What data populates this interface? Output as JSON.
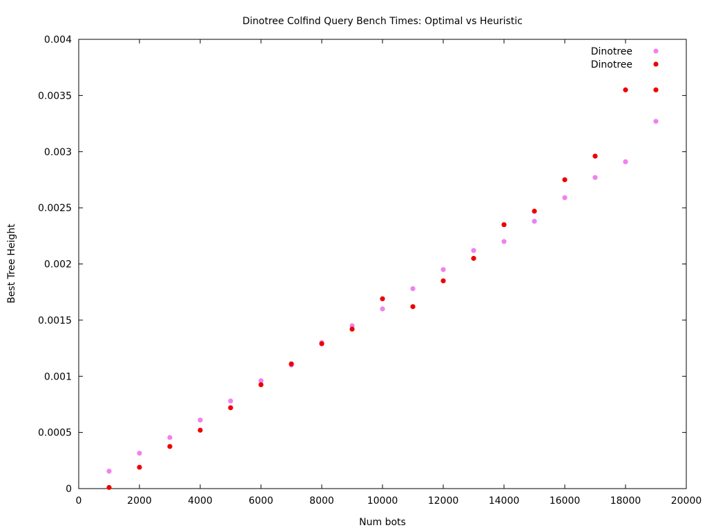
{
  "chart_data": {
    "type": "scatter",
    "title": "Dinotree Colfind Query Bench Times: Optimal vs Heuristic",
    "xlabel": "Num bots",
    "ylabel": "Best Tree Height",
    "xlim": [
      0,
      20000
    ],
    "ylim": [
      0,
      0.004
    ],
    "x_ticks": [
      0,
      2000,
      4000,
      6000,
      8000,
      10000,
      12000,
      14000,
      16000,
      18000,
      20000
    ],
    "x_tick_labels": [
      "0",
      "2000",
      "4000",
      "6000",
      "8000",
      "10000",
      "12000",
      "14000",
      "16000",
      "18000",
      "20000"
    ],
    "y_ticks": [
      0,
      0.0005,
      0.001,
      0.0015,
      0.002,
      0.0025,
      0.003,
      0.0035,
      0.004
    ],
    "y_tick_labels": [
      "0",
      "0.0005",
      "0.001",
      "0.0015",
      "0.002",
      "0.0025",
      "0.003",
      "0.0035",
      "0.004"
    ],
    "grid": false,
    "legend_position": "top-right",
    "series": [
      {
        "name": "Dinotree",
        "color": "#ee82ee",
        "x": [
          1000,
          2000,
          3000,
          4000,
          5000,
          6000,
          7000,
          8000,
          9000,
          10000,
          11000,
          12000,
          13000,
          14000,
          15000,
          16000,
          17000,
          18000,
          19000
        ],
        "y": [
          0.000155,
          0.000315,
          0.000455,
          0.00061,
          0.00078,
          0.00096,
          0.0011,
          0.0013,
          0.00145,
          0.0016,
          0.00178,
          0.00195,
          0.00212,
          0.0022,
          0.00238,
          0.00259,
          0.00277,
          0.00291,
          0.00327
        ]
      },
      {
        "name": "Dinotree",
        "color": "#ee0000",
        "x": [
          1000,
          2000,
          3000,
          4000,
          5000,
          6000,
          7000,
          8000,
          9000,
          10000,
          11000,
          12000,
          13000,
          14000,
          15000,
          16000,
          17000,
          18000,
          19000
        ],
        "y": [
          1e-05,
          0.00019,
          0.000375,
          0.00052,
          0.00072,
          0.000925,
          0.00111,
          0.00129,
          0.00142,
          0.00169,
          0.00162,
          0.00185,
          0.00205,
          0.00235,
          0.00247,
          0.00275,
          0.00296,
          0.00355,
          0.00355
        ]
      }
    ]
  }
}
